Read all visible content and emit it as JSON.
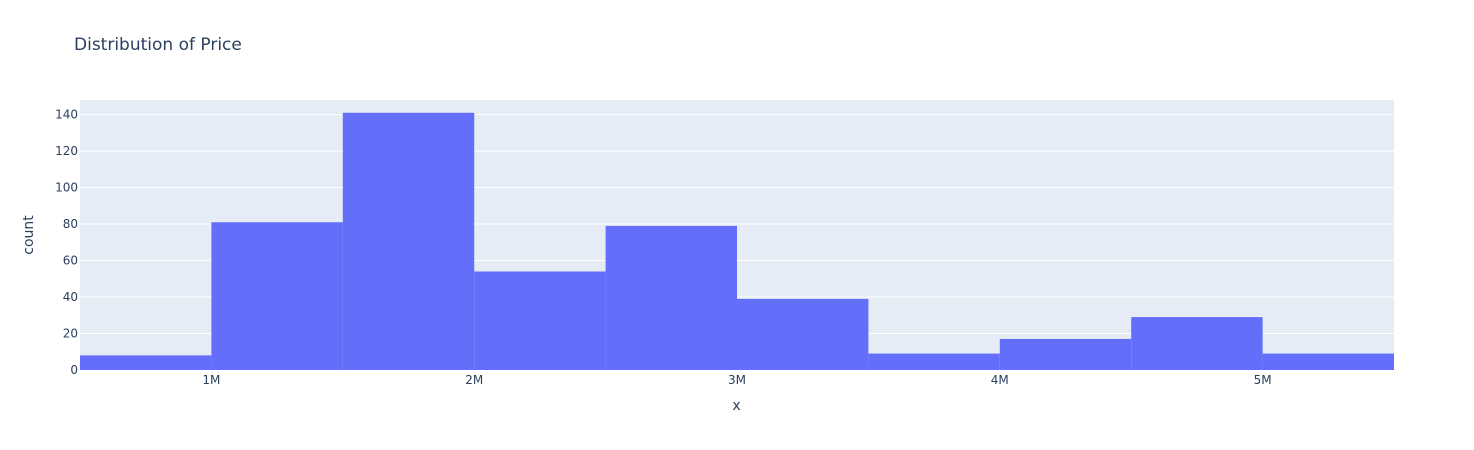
{
  "chart_data": {
    "type": "bar",
    "subtype": "histogram",
    "title": "Distribution of Price",
    "xlabel": "x",
    "ylabel": "count",
    "bin_edges": [
      500000,
      1000000,
      1500000,
      2000000,
      2500000,
      3000000,
      3500000,
      4000000,
      4500000,
      5000000,
      5500000
    ],
    "values": [
      8,
      81,
      141,
      54,
      79,
      39,
      9,
      17,
      29,
      9
    ],
    "xlim": [
      500000,
      5500000
    ],
    "ylim": [
      0,
      148
    ],
    "x_ticks": [
      1000000,
      2000000,
      3000000,
      4000000,
      5000000
    ],
    "x_tick_labels": [
      "1M",
      "2M",
      "3M",
      "4M",
      "5M"
    ],
    "y_ticks": [
      0,
      20,
      40,
      60,
      80,
      100,
      120,
      140
    ],
    "y_tick_labels": [
      "0",
      "20",
      "40",
      "60",
      "80",
      "100",
      "120",
      "140"
    ],
    "grid": true,
    "colors": {
      "bar": "#636efa",
      "plot_bg": "#e5ecf6",
      "grid": "#ffffff",
      "text": "#2a3f5f"
    }
  }
}
